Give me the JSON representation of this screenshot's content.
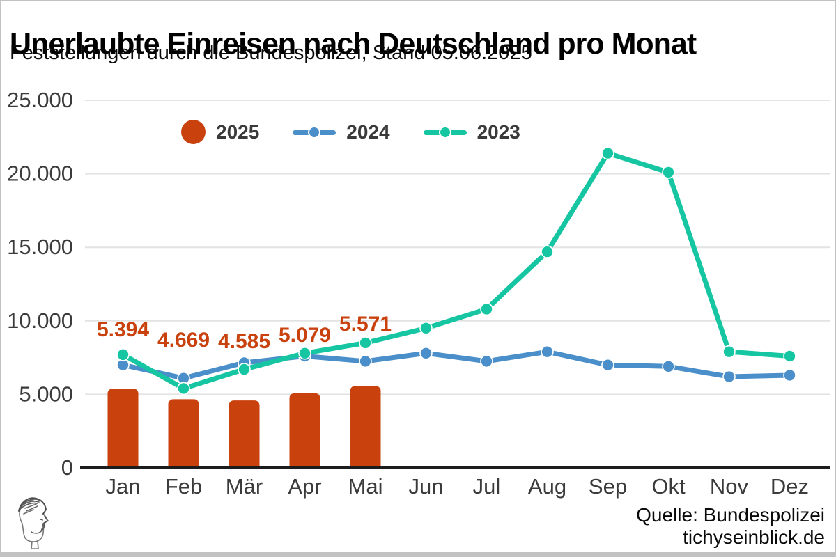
{
  "header": {
    "title": "Unerlaubte Einreisen nach Deutschland pro Monat",
    "subtitle": "Feststellungen durch die Bundespolizei, Stand 05.06.2025"
  },
  "legend": {
    "items": [
      {
        "label": "2025",
        "marker": "filled-circle",
        "color": "#c9420e"
      },
      {
        "label": "2024",
        "marker": "line-with-dot",
        "color": "#4a8fc9"
      },
      {
        "label": "2023",
        "marker": "line-with-dot",
        "color": "#16c5a1"
      }
    ]
  },
  "chart_data": {
    "type": "bar+line",
    "title": "Unerlaubte Einreisen nach Deutschland pro Monat",
    "categories": [
      "Jan",
      "Feb",
      "Mär",
      "Apr",
      "Mai",
      "Jun",
      "Jul",
      "Aug",
      "Sep",
      "Okt",
      "Nov",
      "Dez"
    ],
    "y_tick_labels": [
      "0",
      "5.000",
      "10.000",
      "15.000",
      "20.000",
      "25.000"
    ],
    "y_tick_values": [
      0,
      5000,
      10000,
      15000,
      20000,
      25000
    ],
    "ylim": [
      0,
      25000
    ],
    "grid": true,
    "legend_position": "top inset",
    "series": [
      {
        "name": "2025",
        "type": "bar",
        "color": "#c9420e",
        "values": [
          5394,
          4669,
          4585,
          5079,
          5571
        ],
        "value_labels": [
          "5.394",
          "4.669",
          "4.585",
          "5.079",
          "5.571"
        ]
      },
      {
        "name": "2024",
        "type": "line",
        "color": "#4a8fc9",
        "values": [
          7000,
          6100,
          7150,
          7600,
          7250,
          7800,
          7250,
          7900,
          7000,
          6900,
          6200,
          6300
        ]
      },
      {
        "name": "2023",
        "type": "line",
        "color": "#16c5a1",
        "values": [
          7700,
          5400,
          6700,
          7800,
          8500,
          9500,
          10800,
          14700,
          21400,
          20100,
          7900,
          7600
        ]
      }
    ]
  },
  "footer": {
    "source_line1": "Quelle: Bundespolizei",
    "source_line2": "tichyseinblick.de"
  },
  "colors": {
    "bar_2025": "#c9420e",
    "line_2024": "#4a8fc9",
    "line_2023": "#16c5a1",
    "grid": "#e3e3e3",
    "axis": "#1c1c1c",
    "tick_text": "#3b3b3b",
    "frame": "#c2c2c2"
  }
}
